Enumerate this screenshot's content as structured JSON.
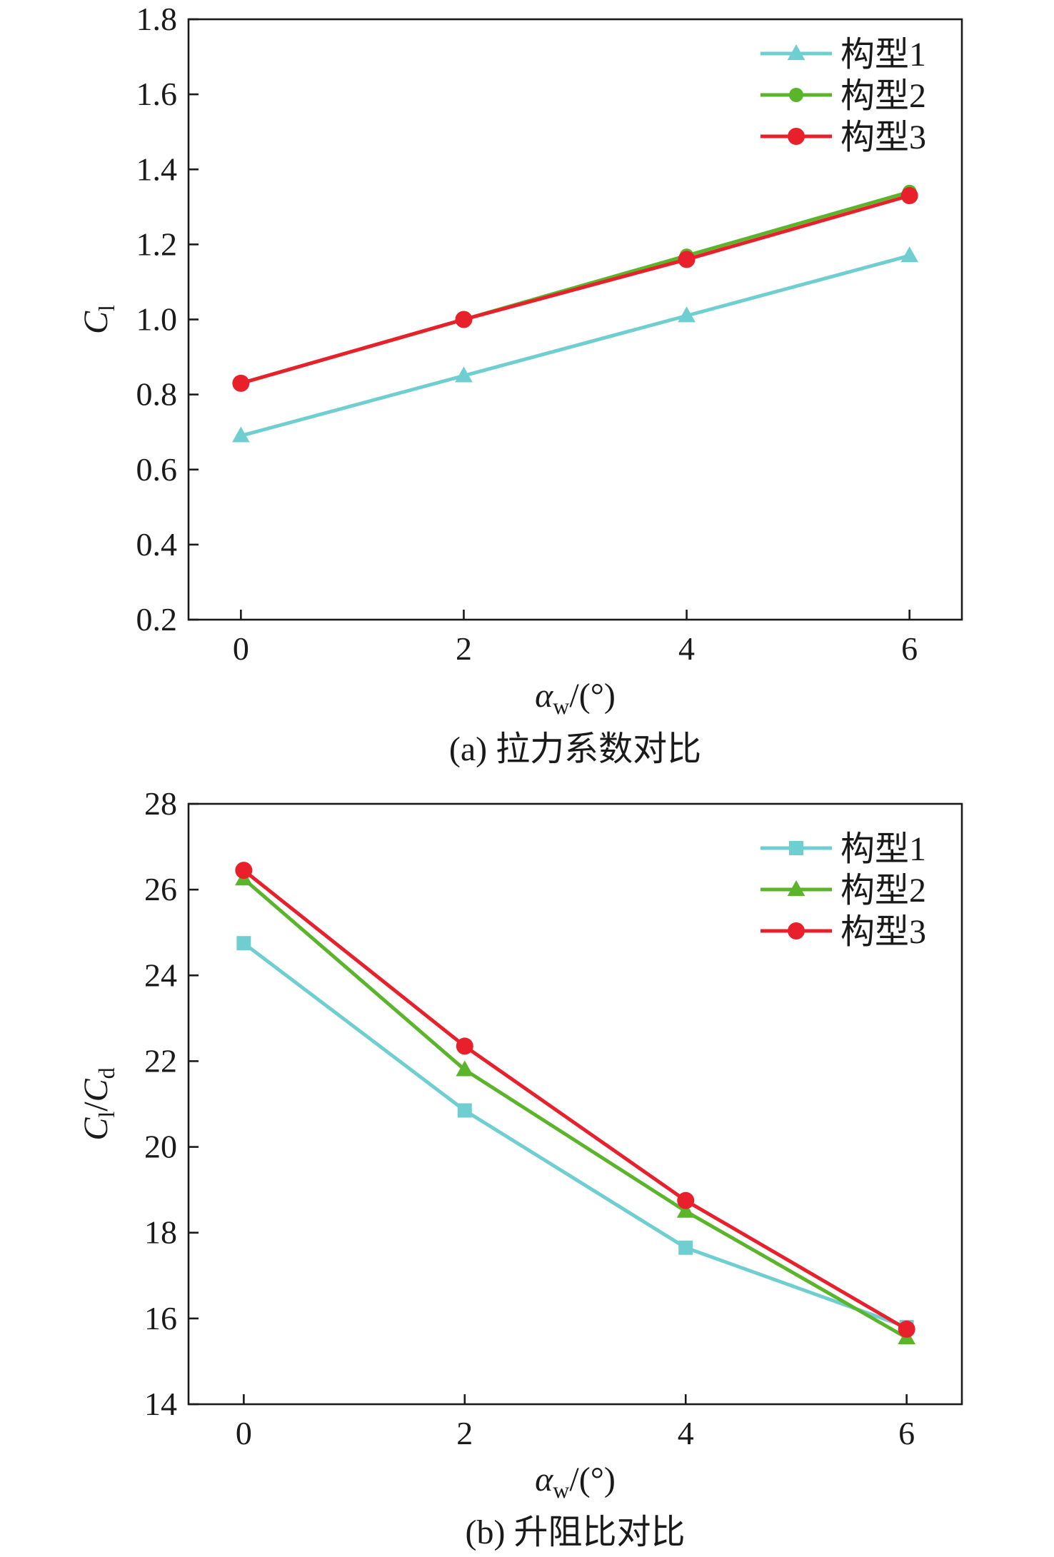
{
  "chart_data": [
    {
      "type": "line",
      "caption": "(a) 拉力系数对比",
      "xlabel": {
        "symbol": "α",
        "sub": "w",
        "unit": "/(°)"
      },
      "ylabel": {
        "symbol": "C",
        "sub": "l"
      },
      "x": [
        0,
        2,
        4,
        6
      ],
      "xlim": [
        -0.47,
        6.47
      ],
      "ylim": [
        0.2,
        1.8
      ],
      "xticks": [
        "0",
        "2",
        "4",
        "6"
      ],
      "yticks": [
        "0.2",
        "0.4",
        "0.6",
        "0.8",
        "1.0",
        "1.2",
        "1.4",
        "1.6",
        "1.8"
      ],
      "legend_position": "top-right",
      "series": [
        {
          "name": "构型1",
          "color": "#6fcfd0",
          "marker": "triangle",
          "values": [
            0.69,
            0.85,
            1.01,
            1.17
          ]
        },
        {
          "name": "构型2",
          "color": "#5ab52a",
          "marker": "circle-small",
          "values": [
            0.83,
            1.0,
            1.17,
            1.34
          ]
        },
        {
          "name": "构型3",
          "color": "#e8202c",
          "marker": "circle",
          "values": [
            0.83,
            1.0,
            1.16,
            1.33
          ]
        }
      ]
    },
    {
      "type": "line",
      "caption": "(b) 升阻比对比",
      "xlabel": {
        "symbol": "α",
        "sub": "w",
        "unit": "/(°)"
      },
      "ylabel": {
        "symbol": "C",
        "sub": "l",
        "symbol2": "C",
        "sub2": "d"
      },
      "x": [
        0,
        2,
        4,
        6
      ],
      "xlim": [
        -0.5,
        6.5
      ],
      "ylim": [
        14,
        28
      ],
      "xticks": [
        "0",
        "2",
        "4",
        "6"
      ],
      "yticks": [
        "14",
        "16",
        "18",
        "20",
        "22",
        "24",
        "26",
        "28"
      ],
      "legend_position": "top-right",
      "series": [
        {
          "name": "构型1",
          "color": "#6fcfd0",
          "marker": "square",
          "values": [
            24.75,
            20.85,
            17.65,
            15.8
          ]
        },
        {
          "name": "构型2",
          "color": "#5ab52a",
          "marker": "triangle",
          "values": [
            26.25,
            21.8,
            18.5,
            15.55
          ]
        },
        {
          "name": "构型3",
          "color": "#e8202c",
          "marker": "circle",
          "values": [
            26.45,
            22.35,
            18.75,
            15.75
          ]
        }
      ]
    }
  ]
}
